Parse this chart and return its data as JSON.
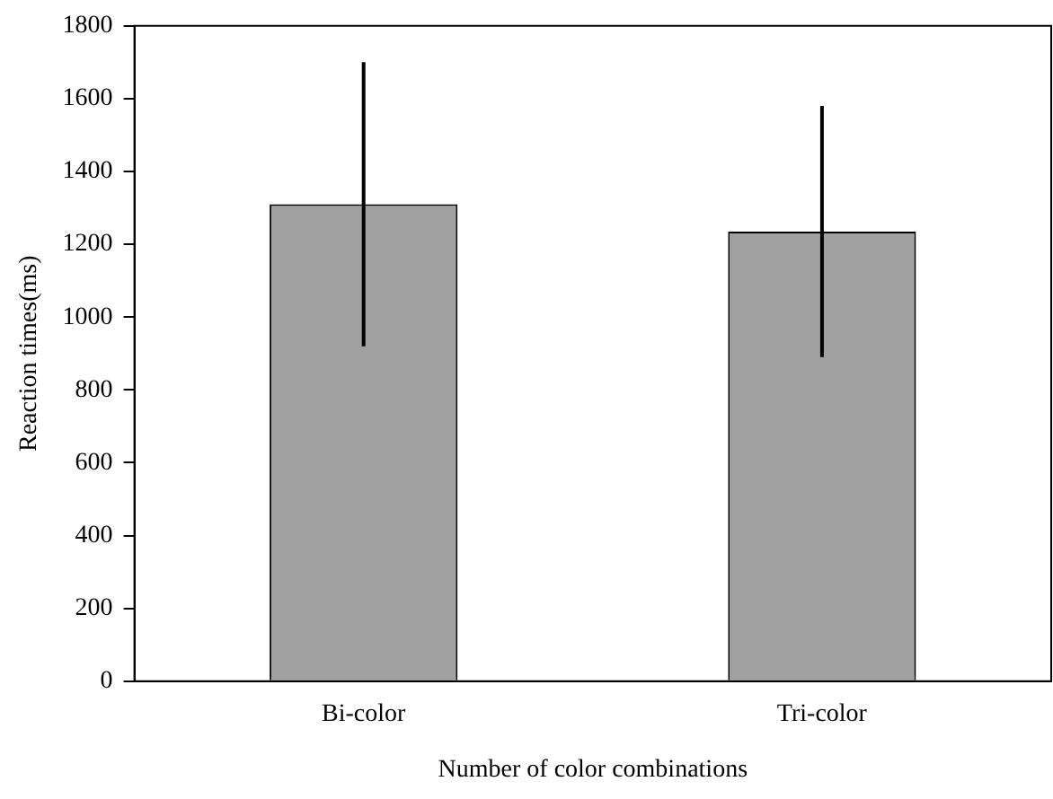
{
  "chart_data": {
    "type": "bar",
    "xlabel": "Number of color combinations",
    "ylabel": "Reaction times(ms)",
    "categories": [
      "Bi-color",
      "Tri-color"
    ],
    "values": [
      1310,
      1235
    ],
    "errors": [
      390,
      345
    ],
    "color": "#a0a0a0",
    "ylim": [
      0,
      1800
    ],
    "yticks": [
      0,
      200,
      400,
      600,
      800,
      1000,
      1200,
      1400,
      1600,
      1800
    ],
    "grid": false,
    "legend": false
  }
}
